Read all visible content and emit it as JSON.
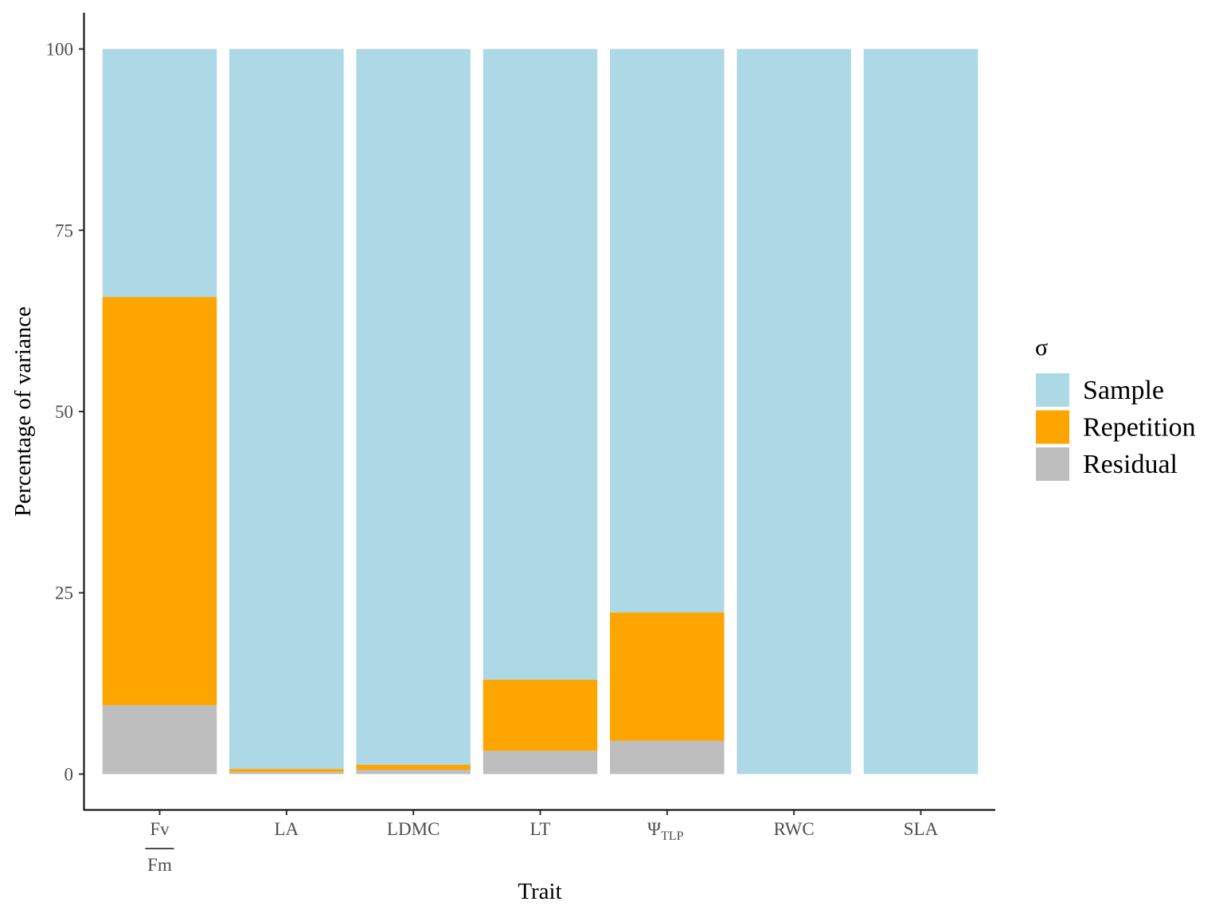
{
  "chart_data": {
    "type": "bar",
    "stacked": true,
    "title": "",
    "xlabel": "Trait",
    "ylabel": "Percentage of variance",
    "ylim": [
      -5,
      105
    ],
    "yticks": [
      0,
      25,
      50,
      75,
      100
    ],
    "grid": false,
    "legend_position": "right",
    "categories": [
      {
        "key": "FvFm",
        "label_num": "Fv",
        "label_den": "Fm"
      },
      {
        "key": "LA",
        "label": "LA"
      },
      {
        "key": "LDMC",
        "label": "LDMC"
      },
      {
        "key": "LT",
        "label": "LT"
      },
      {
        "key": "PsiTLP",
        "label_main": "Ψ",
        "label_sub": "TLP"
      },
      {
        "key": "RWC",
        "label": "RWC"
      },
      {
        "key": "SLA",
        "label": "SLA"
      }
    ],
    "legend": {
      "title": "σ",
      "entries": [
        "Sample",
        "Repetition",
        "Residual"
      ]
    },
    "series": [
      {
        "name": "Residual",
        "color": "#bebebe",
        "values": [
          9.5,
          0.3,
          0.6,
          3.2,
          4.6,
          0,
          0
        ]
      },
      {
        "name": "Repetition",
        "color": "#ffa500",
        "values": [
          56.3,
          0.4,
          0.7,
          9.8,
          17.7,
          0,
          0
        ]
      },
      {
        "name": "Sample",
        "color": "#add8e6",
        "values": [
          34.2,
          99.3,
          98.7,
          87.0,
          77.7,
          100,
          100
        ]
      }
    ]
  }
}
